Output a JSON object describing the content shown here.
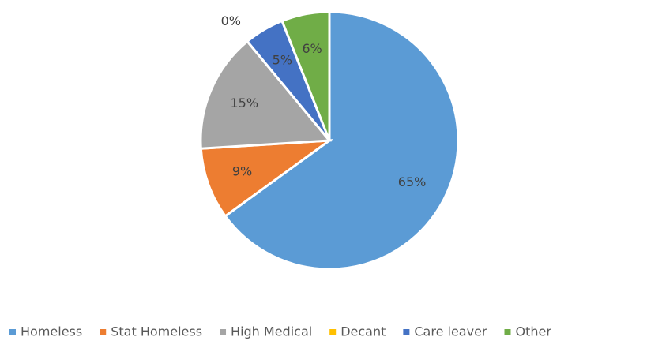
{
  "chart_data": {
    "type": "pie",
    "categories": [
      "Homeless",
      "Stat Homeless",
      "High Medical",
      "Decant",
      "Care leaver",
      "Other"
    ],
    "values": [
      65,
      9,
      15,
      0,
      5,
      6
    ],
    "value_labels": [
      "65%",
      "9%",
      "15%",
      "0%",
      "5%",
      "6%"
    ],
    "colors": [
      "#5b9bd5",
      "#ed7d31",
      "#a5a5a5",
      "#ffc000",
      "#4472c4",
      "#70ad47"
    ],
    "legend": "bottom"
  }
}
